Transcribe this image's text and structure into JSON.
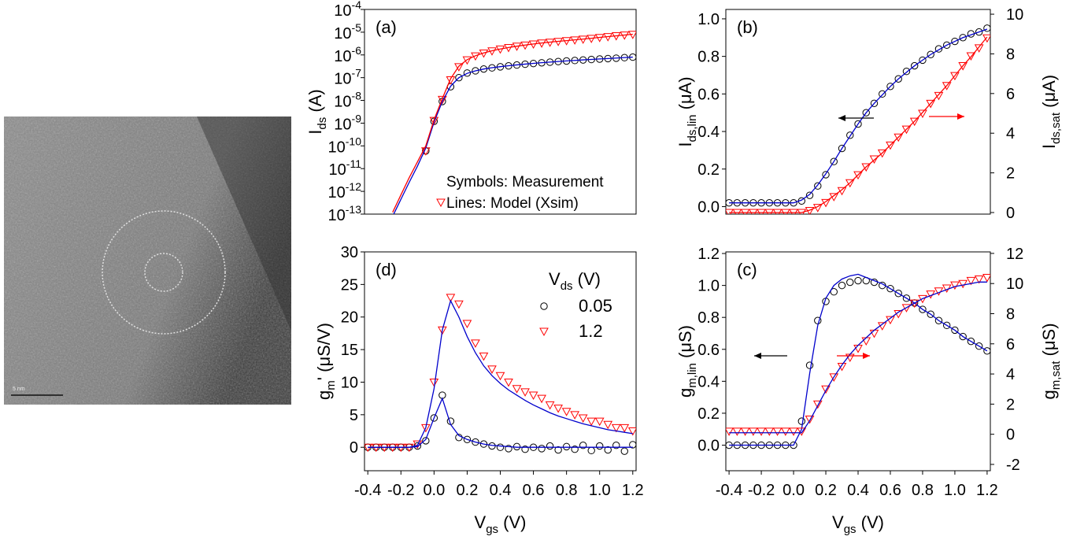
{
  "image": {
    "scale_bar": "5 nm"
  },
  "chart_data": [
    {
      "type": "line",
      "panel_label": "(a)",
      "notes": [
        "Symbols: Measurement",
        "Lines: Model (Xsim)"
      ],
      "ylabel": {
        "text": "I",
        "sub": "ds",
        "tail": " (A)"
      },
      "log_y": true,
      "xlim": [
        -0.42,
        1.22
      ],
      "ylim": [
        1e-13,
        0.0001
      ],
      "yticks": [
        {
          "value": 0.0001,
          "label": "10",
          "sup": "-4"
        },
        {
          "value": 1e-05,
          "label": "10",
          "sup": "-5"
        },
        {
          "value": 1e-06,
          "label": "10",
          "sup": "-6"
        },
        {
          "value": 1e-07,
          "label": "10",
          "sup": "-7"
        },
        {
          "value": 1e-08,
          "label": "10",
          "sup": "-8"
        },
        {
          "value": 1e-09,
          "label": "10",
          "sup": "-9"
        },
        {
          "value": 1e-10,
          "label": "10",
          "sup": "-10"
        },
        {
          "value": 1e-11,
          "label": "10",
          "sup": "-11"
        },
        {
          "value": 1e-12,
          "label": "10",
          "sup": "-12"
        },
        {
          "value": 1e-13,
          "label": "10",
          "sup": "-13"
        }
      ],
      "x": [
        -0.4,
        -0.35,
        -0.3,
        -0.25,
        -0.2,
        -0.15,
        -0.1,
        -0.05,
        0,
        0.05,
        0.1,
        0.15,
        0.2,
        0.25,
        0.3,
        0.35,
        0.4,
        0.45,
        0.5,
        0.55,
        0.6,
        0.65,
        0.7,
        0.75,
        0.8,
        0.85,
        0.9,
        0.95,
        1,
        1.05,
        1.1,
        1.15,
        1.2
      ],
      "series": [
        {
          "marker": "circle",
          "color": "#000000",
          "values": [
            null,
            null,
            null,
            null,
            null,
            null,
            null,
            6e-11,
            1.2e-09,
            9e-09,
            4e-08,
            1e-07,
            1.6e-07,
            2e-07,
            2.4e-07,
            2.7e-07,
            3e-07,
            3.3e-07,
            3.6e-07,
            3.9e-07,
            4.2e-07,
            4.5e-07,
            4.8e-07,
            5.1e-07,
            5.4e-07,
            5.7e-07,
            6e-07,
            6.3e-07,
            6.6e-07,
            6.9e-07,
            7.2e-07,
            7.6e-07,
            8e-07
          ]
        },
        {
          "marker": "triangle",
          "color": "#ff0000",
          "values": [
            null,
            null,
            null,
            null,
            null,
            null,
            null,
            6e-11,
            1.3e-09,
            1.1e-08,
            8e-08,
            3e-07,
            6e-07,
            9e-07,
            1.2e-06,
            1.5e-06,
            1.8e-06,
            2.1e-06,
            2.4e-06,
            2.7e-06,
            3e-06,
            3.3e-06,
            3.6e-06,
            3.9e-06,
            4.2e-06,
            4.5e-06,
            4.9e-06,
            5.3e-06,
            5.8e-06,
            6.3e-06,
            6.9e-06,
            7.4e-06,
            8e-06
          ]
        },
        {
          "marker": "none",
          "color": "#0000cc",
          "values": [
            null,
            null,
            null,
            8e-14,
            4.5e-13,
            2.5e-12,
            1.3e-11,
            8e-11,
            1.1e-09,
            9e-09,
            4.2e-08,
            1e-07,
            1.55e-07,
            2e-07,
            2.4e-07,
            2.75e-07,
            3.05e-07,
            3.35e-07,
            3.65e-07,
            3.95e-07,
            4.25e-07,
            4.55e-07,
            4.85e-07,
            5.15e-07,
            5.45e-07,
            5.75e-07,
            6.05e-07,
            6.35e-07,
            6.65e-07,
            6.95e-07,
            7.3e-07,
            7.65e-07,
            8e-07
          ]
        },
        {
          "marker": "none",
          "color": "#ff0000",
          "values": [
            null,
            null,
            null,
            1.2e-13,
            7e-13,
            4e-12,
            2e-11,
            1e-10,
            1.4e-09,
            1.2e-08,
            9e-08,
            3.2e-07,
            6.2e-07,
            9.2e-07,
            1.22e-06,
            1.52e-06,
            1.82e-06,
            2.12e-06,
            2.42e-06,
            2.72e-06,
            3.02e-06,
            3.35e-06,
            3.65e-06,
            3.95e-06,
            4.25e-06,
            4.6e-06,
            5e-06,
            5.4e-06,
            5.9e-06,
            6.4e-06,
            6.9e-06,
            7.5e-06,
            8.1e-06
          ]
        }
      ]
    },
    {
      "type": "line",
      "panel_label": "(b)",
      "ylabel": {
        "text": "I",
        "sub": "ds,lin",
        "tail": " (μA)"
      },
      "y2label": {
        "text": "I",
        "sub": "ds,sat",
        "tail": " (μA)"
      },
      "xlim": [
        -0.42,
        1.22
      ],
      "ylim": [
        -0.04,
        1.05
      ],
      "y2lim": [
        -0.08,
        10.24
      ],
      "yticks": [
        {
          "value": 0,
          "label": "0.0"
        },
        0.2,
        0.4,
        0.6,
        0.8,
        {
          "value": 1,
          "label": "1.0"
        }
      ],
      "y2ticks": [
        0,
        2,
        4,
        6,
        8,
        10
      ],
      "x": [
        -0.4,
        -0.35,
        -0.3,
        -0.25,
        -0.2,
        -0.15,
        -0.1,
        -0.05,
        0,
        0.05,
        0.1,
        0.15,
        0.2,
        0.25,
        0.3,
        0.35,
        0.4,
        0.45,
        0.5,
        0.55,
        0.6,
        0.65,
        0.7,
        0.75,
        0.8,
        0.85,
        0.9,
        0.95,
        1,
        1.05,
        1.1,
        1.15,
        1.2
      ],
      "series": [
        {
          "marker": "circle",
          "color": "#000000",
          "values": [
            0.02,
            0.02,
            0.02,
            0.02,
            0.02,
            0.02,
            0.02,
            0.02,
            0.02,
            0.03,
            0.06,
            0.11,
            0.17,
            0.24,
            0.31,
            0.38,
            0.44,
            0.5,
            0.55,
            0.6,
            0.64,
            0.68,
            0.72,
            0.75,
            0.78,
            0.81,
            0.84,
            0.86,
            0.88,
            0.9,
            0.92,
            0.93,
            0.95
          ]
        },
        {
          "marker": "none",
          "color": "#0000cc",
          "values": [
            0.02,
            0.02,
            0.02,
            0.02,
            0.02,
            0.02,
            0.02,
            0.02,
            0.02,
            0.035,
            0.065,
            0.115,
            0.175,
            0.24,
            0.31,
            0.375,
            0.44,
            0.5,
            0.55,
            0.595,
            0.64,
            0.68,
            0.715,
            0.75,
            0.78,
            0.81,
            0.835,
            0.86,
            0.88,
            0.9,
            0.915,
            0.93,
            0.945
          ]
        },
        {
          "marker": "triangle",
          "color": "#ff0000",
          "axis": "y2",
          "values": [
            0,
            0,
            0,
            0,
            0,
            0,
            0,
            0,
            0,
            0,
            0.1,
            0.25,
            0.5,
            0.8,
            1.1,
            1.5,
            1.9,
            2.3,
            2.7,
            3,
            3.4,
            3.8,
            4.2,
            4.6,
            5,
            5.5,
            5.9,
            6.4,
            6.9,
            7.4,
            7.9,
            8.3,
            8.8
          ]
        },
        {
          "marker": "none",
          "color": "#ff0000",
          "axis": "y2",
          "values": [
            0,
            0,
            0,
            0,
            0,
            0,
            0,
            0,
            0,
            0,
            0.12,
            0.3,
            0.55,
            0.85,
            1.15,
            1.5,
            1.9,
            2.3,
            2.65,
            3,
            3.4,
            3.8,
            4.2,
            4.6,
            5.05,
            5.5,
            5.95,
            6.4,
            6.9,
            7.4,
            7.85,
            8.35,
            8.85
          ]
        }
      ]
    },
    {
      "type": "line",
      "panel_label": "(c)",
      "xlabel": {
        "text": "V",
        "sub": "gs",
        "tail": " (V)"
      },
      "ylabel": {
        "text": "g",
        "sub": "m,lin",
        "tail": " (μS)"
      },
      "y2label": {
        "text": "g",
        "sub": "m,sat",
        "tail": " (μS)"
      },
      "xlim": [
        -0.42,
        1.22
      ],
      "ylim": [
        -0.16,
        1.21
      ],
      "y2lim": [
        -2.42,
        12.1
      ],
      "xticks": [
        -0.4,
        -0.2,
        {
          "value": 0,
          "label": "0.0"
        },
        0.2,
        0.4,
        0.6,
        0.8,
        {
          "value": 1,
          "label": "1.0"
        },
        1.2
      ],
      "yticks": [
        {
          "value": 0,
          "label": "0.0"
        },
        0.2,
        0.4,
        0.6,
        0.8,
        {
          "value": 1,
          "label": "1.0"
        },
        1.2
      ],
      "y2ticks": [
        -2,
        0,
        2,
        4,
        6,
        8,
        10,
        12
      ],
      "x": [
        -0.4,
        -0.35,
        -0.3,
        -0.25,
        -0.2,
        -0.15,
        -0.1,
        -0.05,
        0,
        0.05,
        0.1,
        0.15,
        0.2,
        0.25,
        0.3,
        0.35,
        0.4,
        0.45,
        0.5,
        0.55,
        0.6,
        0.65,
        0.7,
        0.75,
        0.8,
        0.85,
        0.9,
        0.95,
        1,
        1.05,
        1.1,
        1.15,
        1.2
      ],
      "series": [
        {
          "marker": "circle",
          "color": "#000000",
          "values": [
            0,
            0,
            0,
            0,
            0,
            0,
            0,
            0,
            0,
            0.15,
            0.5,
            0.78,
            0.9,
            0.96,
            1.0,
            1.02,
            1.03,
            1.03,
            1.02,
            1.0,
            0.98,
            0.95,
            0.92,
            0.89,
            0.85,
            0.82,
            0.78,
            0.75,
            0.72,
            0.68,
            0.65,
            0.62,
            0.59
          ]
        },
        {
          "marker": "none",
          "color": "#0000cc",
          "values": [
            0,
            0,
            0,
            0,
            0,
            0,
            0,
            0,
            0,
            0.1,
            0.45,
            0.75,
            0.92,
            1.0,
            1.04,
            1.06,
            1.07,
            1.05,
            1.03,
            1.01,
            0.98,
            0.95,
            0.92,
            0.89,
            0.85,
            0.82,
            0.78,
            0.75,
            0.72,
            0.68,
            0.65,
            0.62,
            0.59
          ]
        },
        {
          "marker": "triangle",
          "color": "#ff0000",
          "axis": "y2",
          "values": [
            0.2,
            0.2,
            0.2,
            0.2,
            0.2,
            0.2,
            0.2,
            0.2,
            0.2,
            0.2,
            1.0,
            2.0,
            3.0,
            3.8,
            4.5,
            5.1,
            5.7,
            6.2,
            6.7,
            7.2,
            7.6,
            8.0,
            8.4,
            8.7,
            9.0,
            9.3,
            9.5,
            9.7,
            9.9,
            10.0,
            10.2,
            10.3,
            10.4
          ]
        },
        {
          "marker": "none",
          "color": "#0000cc",
          "axis": "y2",
          "values": [
            0.1,
            0.1,
            0.1,
            0.1,
            0.1,
            0.1,
            0.1,
            0.1,
            0.1,
            0.1,
            0.9,
            1.9,
            2.9,
            3.8,
            4.6,
            5.3,
            5.9,
            6.4,
            6.9,
            7.3,
            7.7,
            8.1,
            8.4,
            8.7,
            9.0,
            9.2,
            9.4,
            9.6,
            9.8,
            9.9,
            10.0,
            10.1,
            10.1
          ]
        }
      ]
    },
    {
      "type": "line",
      "panel_label": "(d)",
      "xlabel": {
        "text": "V",
        "sub": "gs",
        "tail": " (V)"
      },
      "ylabel": {
        "text": "g",
        "sub": "m",
        "tail": "' (μS/V)"
      },
      "legend": "upper right",
      "legend_title": {
        "text": "V",
        "sub": "ds",
        "tail": " (V)"
      },
      "xlim": [
        -0.42,
        1.22
      ],
      "ylim": [
        -3.6,
        30
      ],
      "xticks": [
        -0.4,
        -0.2,
        {
          "value": 0,
          "label": "0.0"
        },
        0.2,
        0.4,
        0.6,
        0.8,
        {
          "value": 1,
          "label": "1.0"
        },
        1.2
      ],
      "yticks": [
        0,
        5,
        10,
        15,
        20,
        25,
        30
      ],
      "x": [
        -0.4,
        -0.35,
        -0.3,
        -0.25,
        -0.2,
        -0.15,
        -0.1,
        -0.05,
        0,
        0.05,
        0.1,
        0.15,
        0.2,
        0.25,
        0.3,
        0.35,
        0.4,
        0.45,
        0.5,
        0.55,
        0.6,
        0.65,
        0.7,
        0.75,
        0.8,
        0.85,
        0.9,
        0.95,
        1,
        1.05,
        1.1,
        1.15,
        1.2
      ],
      "series": [
        {
          "name": "0.05",
          "marker": "circle",
          "color": "#000000",
          "values": [
            0,
            0,
            0,
            0,
            0,
            0,
            0.2,
            1,
            4.5,
            8,
            4,
            1.5,
            1.2,
            0.8,
            0.5,
            0.2,
            0,
            -0.2,
            0.1,
            -0.3,
            0,
            -0.2,
            0.2,
            -0.4,
            0.1,
            -0.3,
            0.3,
            -0.5,
            0.2,
            -0.4,
            0.3,
            -0.6,
            0.4
          ]
        },
        {
          "name": "1.2",
          "marker": "triangle",
          "color": "#ff0000",
          "values": [
            0,
            0,
            0,
            0,
            0,
            0,
            0.5,
            3,
            10,
            18,
            23,
            22,
            19,
            16,
            14,
            12,
            11,
            10,
            9,
            8.5,
            8,
            7.5,
            6.5,
            6,
            5.5,
            5,
            4.5,
            4,
            4,
            3.5,
            3,
            3,
            2.5
          ]
        },
        {
          "marker": "none",
          "color": "#0000cc",
          "values": [
            0,
            0,
            0,
            0,
            0,
            0,
            0.1,
            1.2,
            4.5,
            7.5,
            3.5,
            1.8,
            1.2,
            0.8,
            0.5,
            0.3,
            0.2,
            0.1,
            0,
            0,
            0,
            0,
            0,
            0,
            0,
            0,
            0,
            0,
            0,
            0,
            0,
            0,
            0
          ]
        },
        {
          "marker": "none",
          "color": "#0000cc",
          "values": [
            0,
            0,
            0,
            0,
            0,
            0,
            0.3,
            3,
            9,
            18,
            22.5,
            20,
            17,
            14.5,
            12.5,
            11,
            9.8,
            8.8,
            8,
            7.2,
            6.5,
            5.9,
            5.3,
            4.8,
            4.4,
            4,
            3.6,
            3.3,
            3,
            2.7,
            2.5,
            2.3,
            2.1
          ]
        }
      ]
    }
  ]
}
